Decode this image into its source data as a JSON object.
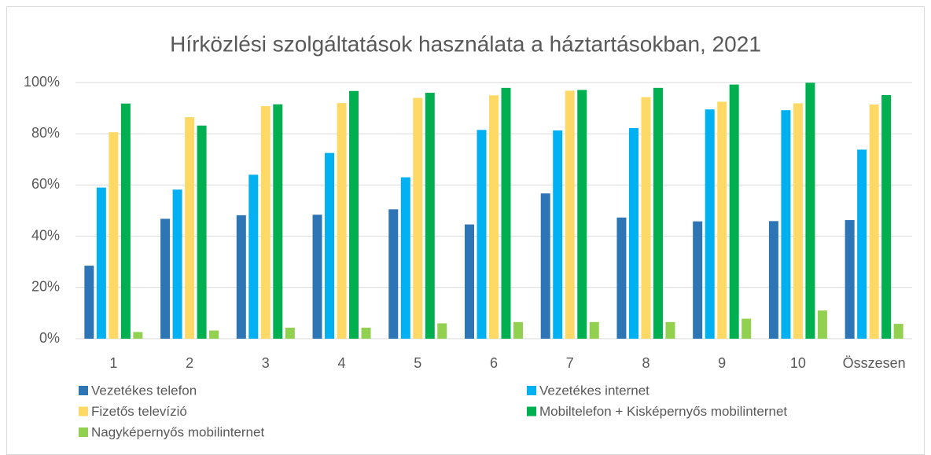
{
  "chart_data": {
    "type": "bar",
    "title": "Hírközlési szolgáltatások használata a háztartásokban, 2021",
    "categories": [
      "1",
      "2",
      "3",
      "4",
      "5",
      "6",
      "7",
      "8",
      "9",
      "10",
      "Összesen"
    ],
    "series": [
      {
        "name": "Vezetékes telefon",
        "color": "#2e75b6",
        "values": [
          28.5,
          46.8,
          48.2,
          48.4,
          50.5,
          44.6,
          56.7,
          47.3,
          45.8,
          45.9,
          46.3
        ]
      },
      {
        "name": "Vezetékes internet",
        "color": "#00b0f0",
        "values": [
          59.0,
          58.2,
          64.0,
          72.5,
          63.0,
          81.5,
          81.3,
          82.2,
          89.5,
          89.2,
          73.8
        ]
      },
      {
        "name": "Fizetős televízió",
        "color": "#ffd966",
        "values": [
          80.6,
          86.5,
          90.8,
          92.0,
          94.0,
          95.0,
          96.8,
          94.3,
          92.5,
          91.9,
          91.4
        ]
      },
      {
        "name": "Mobiltelefon + Kisképernyős mobilinternet",
        "color": "#00b050",
        "values": [
          91.8,
          83.2,
          91.5,
          96.7,
          96.0,
          97.9,
          97.1,
          97.9,
          99.2,
          99.9,
          95.1
        ]
      },
      {
        "name": "Nagyképernyős mobilinternet",
        "color": "#92d050",
        "values": [
          2.6,
          3.2,
          4.3,
          4.3,
          6.0,
          6.5,
          6.5,
          6.5,
          7.8,
          11.0,
          5.8
        ]
      }
    ],
    "ylim": [
      0,
      100
    ],
    "yticks": [
      {
        "value": 0,
        "label": "0%"
      },
      {
        "value": 20,
        "label": "20%"
      },
      {
        "value": 40,
        "label": "40%"
      },
      {
        "value": 60,
        "label": "60%"
      },
      {
        "value": 80,
        "label": "80%"
      },
      {
        "value": 100,
        "label": "100%"
      }
    ],
    "grid": true
  }
}
